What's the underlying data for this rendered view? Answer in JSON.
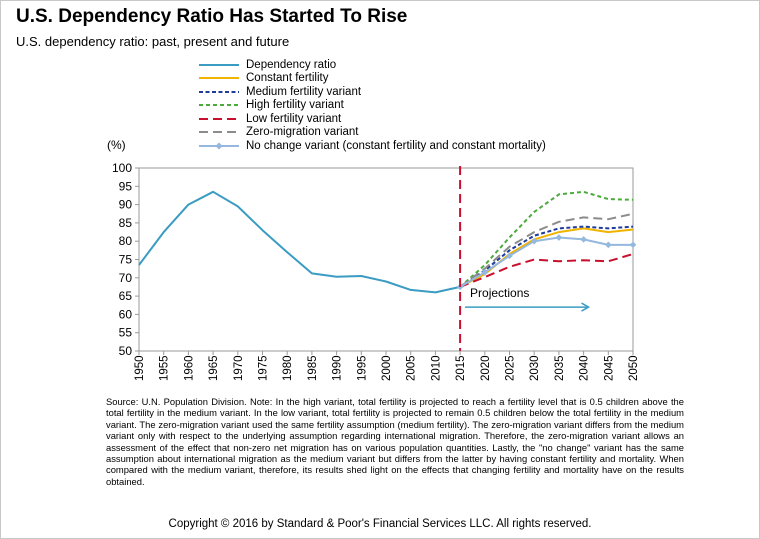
{
  "title": "U.S. Dependency Ratio Has Started To Rise",
  "subtitle": "U.S. dependency ratio: past, present and future",
  "chart_data": {
    "type": "line",
    "ylabel": "(%)",
    "xlim": [
      1950,
      2050
    ],
    "ylim": [
      50,
      100
    ],
    "yticks": [
      50,
      55,
      60,
      65,
      70,
      75,
      80,
      85,
      90,
      95,
      100
    ],
    "x": [
      1950,
      1955,
      1960,
      1965,
      1970,
      1975,
      1980,
      1985,
      1990,
      1995,
      2000,
      2005,
      2010,
      2015,
      2020,
      2025,
      2030,
      2035,
      2040,
      2045,
      2050
    ],
    "xtick_labels": [
      "1950",
      "1955",
      "1960",
      "1965",
      "1970",
      "1975",
      "1980",
      "1985",
      "1990",
      "1995",
      "2000",
      "2005",
      "2010",
      "2015",
      "2020",
      "2025",
      "2030",
      "2035",
      "2040",
      "2045",
      "2050"
    ],
    "legend_position": "top",
    "series": [
      {
        "name": "Dependency ratio",
        "color": "#3a9cc2",
        "dash": "solid",
        "x": [
          1950,
          1955,
          1960,
          1965,
          1970,
          1975,
          1980,
          1985,
          1990,
          1995,
          2000,
          2005,
          2010,
          2015
        ],
        "values": [
          73.5,
          82.5,
          90,
          93.5,
          89.5,
          83,
          77,
          71.2,
          70.3,
          70.5,
          69,
          66.7,
          66,
          67.5
        ]
      },
      {
        "name": "Constant fertility",
        "color": "#f0b400",
        "dash": "solid",
        "x": [
          2015,
          2020,
          2025,
          2030,
          2035,
          2040,
          2045,
          2050
        ],
        "values": [
          67.5,
          71,
          76.5,
          80.5,
          82.5,
          83.5,
          82.5,
          83.2
        ]
      },
      {
        "name": "Medium fertility variant",
        "color": "#1f3b9c",
        "dash": "dotted",
        "x": [
          2015,
          2020,
          2025,
          2030,
          2035,
          2040,
          2045,
          2050
        ],
        "values": [
          67.5,
          72,
          77.5,
          81.5,
          83.5,
          84,
          83.5,
          84
        ]
      },
      {
        "name": "High fertility variant",
        "color": "#4caa3c",
        "dash": "dashed-short",
        "x": [
          2015,
          2020,
          2025,
          2030,
          2035,
          2040,
          2045,
          2050
        ],
        "values": [
          67.5,
          73.5,
          81,
          88,
          92.8,
          93.5,
          91.5,
          91.3
        ]
      },
      {
        "name": "Low fertility variant",
        "color": "#c8102e",
        "dash": "dashed-long",
        "x": [
          2015,
          2020,
          2025,
          2030,
          2035,
          2040,
          2045,
          2050
        ],
        "values": [
          67.5,
          70.2,
          73,
          75,
          74.5,
          74.8,
          74.5,
          76.5
        ]
      },
      {
        "name": "Zero-migration variant",
        "color": "#8c8c8c",
        "dash": "dashed-long",
        "x": [
          2015,
          2020,
          2025,
          2030,
          2035,
          2040,
          2045,
          2050
        ],
        "values": [
          67.5,
          72.5,
          78.5,
          82.5,
          85.3,
          86.5,
          86,
          87.5
        ]
      },
      {
        "name": "No change variant (constant fertility and constant mortality)",
        "color": "#95b8de",
        "dash": "solid",
        "marker": "diamond",
        "x": [
          2015,
          2020,
          2025,
          2030,
          2035,
          2040,
          2045,
          2050
        ],
        "values": [
          67.5,
          71.5,
          76,
          80,
          81,
          80.5,
          79,
          79
        ]
      }
    ],
    "annotations": {
      "projection_year": 2015,
      "projections_label": "Projections",
      "arrow_from": 2016,
      "arrow_to": 2041,
      "arrow_y": 62,
      "arrow_color": "#3a9cc2"
    }
  },
  "source_note": "Source: U.N. Population Division. Note: In the high variant, total fertility is projected to reach a fertility level that is 0.5 children above the total fertility in the medium variant. In the low variant, total fertility is projected to remain 0.5 children below the total fertility in the medium variant. The zero-migration variant used the same fertility assumption (medium fertility). The zero-migration variant differs from the medium variant only with respect to the underlying assumption regarding international migration. Therefore, the zero-migration variant allows an assessment of the effect that non-zero net migration has on various population quantities. Lastly, the \"no change\" variant has the same assumption about international migration as the medium variant but differs from the latter by having constant fertility and mortality. When compared with the medium variant, therefore, its results shed light on the effects that changing fertility and mortality have on the results obtained.",
  "copyright": "Copyright © 2016 by Standard & Poor's Financial Services LLC. All rights reserved."
}
